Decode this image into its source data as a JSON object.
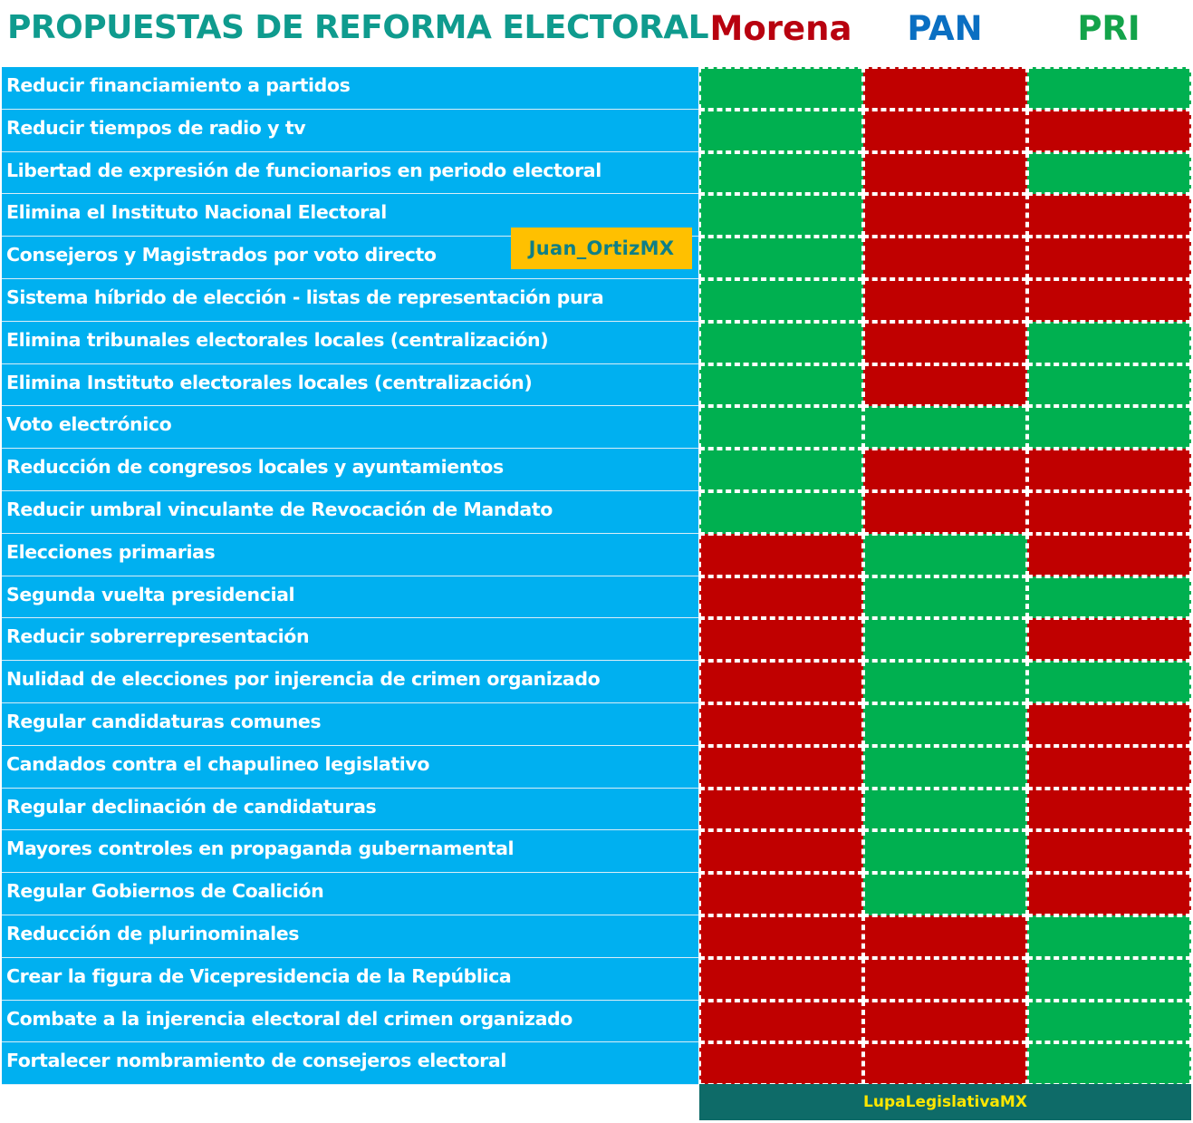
{
  "chart_data": {
    "type": "table",
    "title": "PROPUESTAS DE REFORMA ELECTORAL",
    "columns": [
      "Morena",
      "PAN",
      "PRI"
    ],
    "legend": {
      "green": "#00b050",
      "red": "#c00000"
    },
    "rows": [
      {
        "label": "Reducir financiamiento a partidos",
        "values": [
          "green",
          "red",
          "green"
        ]
      },
      {
        "label": "Reducir tiempos de radio y tv",
        "values": [
          "green",
          "red",
          "red"
        ]
      },
      {
        "label": "Libertad de expresión de funcionarios en periodo electoral",
        "values": [
          "green",
          "red",
          "green"
        ]
      },
      {
        "label": "Elimina el Instituto Nacional Electoral",
        "values": [
          "green",
          "red",
          "red"
        ]
      },
      {
        "label": "Consejeros y Magistrados por voto directo",
        "values": [
          "green",
          "red",
          "red"
        ]
      },
      {
        "label": "Sistema híbrido de elección - listas de representación pura",
        "values": [
          "green",
          "red",
          "red"
        ]
      },
      {
        "label": "Elimina tribunales electorales locales (centralización)",
        "values": [
          "green",
          "red",
          "green"
        ]
      },
      {
        "label": "Elimina Instituto electorales locales (centralización)",
        "values": [
          "green",
          "red",
          "green"
        ]
      },
      {
        "label": "Voto electrónico",
        "values": [
          "green",
          "green",
          "green"
        ]
      },
      {
        "label": "Reducción de congresos locales y ayuntamientos",
        "values": [
          "green",
          "red",
          "red"
        ]
      },
      {
        "label": "Reducir umbral vinculante de Revocación de Mandato",
        "values": [
          "green",
          "red",
          "red"
        ]
      },
      {
        "label": "Elecciones primarias",
        "values": [
          "red",
          "green",
          "red"
        ]
      },
      {
        "label": "Segunda vuelta presidencial",
        "values": [
          "red",
          "green",
          "green"
        ]
      },
      {
        "label": "Reducir sobrerrepresentación",
        "values": [
          "red",
          "green",
          "red"
        ]
      },
      {
        "label": "Nulidad de elecciones por injerencia de crimen organizado",
        "values": [
          "red",
          "green",
          "green"
        ]
      },
      {
        "label": "Regular candidaturas comunes",
        "values": [
          "red",
          "green",
          "red"
        ]
      },
      {
        "label": "Candados contra el chapulineo legislativo",
        "values": [
          "red",
          "green",
          "red"
        ]
      },
      {
        "label": "Regular declinación de candidaturas",
        "values": [
          "red",
          "green",
          "red"
        ]
      },
      {
        "label": "Mayores controles en propaganda gubernamental",
        "values": [
          "red",
          "green",
          "red"
        ]
      },
      {
        "label": "Regular Gobiernos de Coalición",
        "values": [
          "red",
          "green",
          "red"
        ]
      },
      {
        "label": "Reducción de plurinominales",
        "values": [
          "red",
          "red",
          "green"
        ]
      },
      {
        "label": "Crear la figura de Vicepresidencia de la República",
        "values": [
          "red",
          "red",
          "green"
        ]
      },
      {
        "label": "Combate a la injerencia electoral del crimen organizado",
        "values": [
          "red",
          "red",
          "green"
        ]
      },
      {
        "label": "Fortalecer nombramiento de consejeros electoral",
        "values": [
          "red",
          "red",
          "green"
        ]
      }
    ]
  },
  "header": {
    "title": "PROPUESTAS DE REFORMA ELECTORAL",
    "parties": [
      "Morena",
      "PAN",
      "PRI"
    ]
  },
  "watermark": "Juan_OrtizMX",
  "footer": "LupaLegislativaMX"
}
